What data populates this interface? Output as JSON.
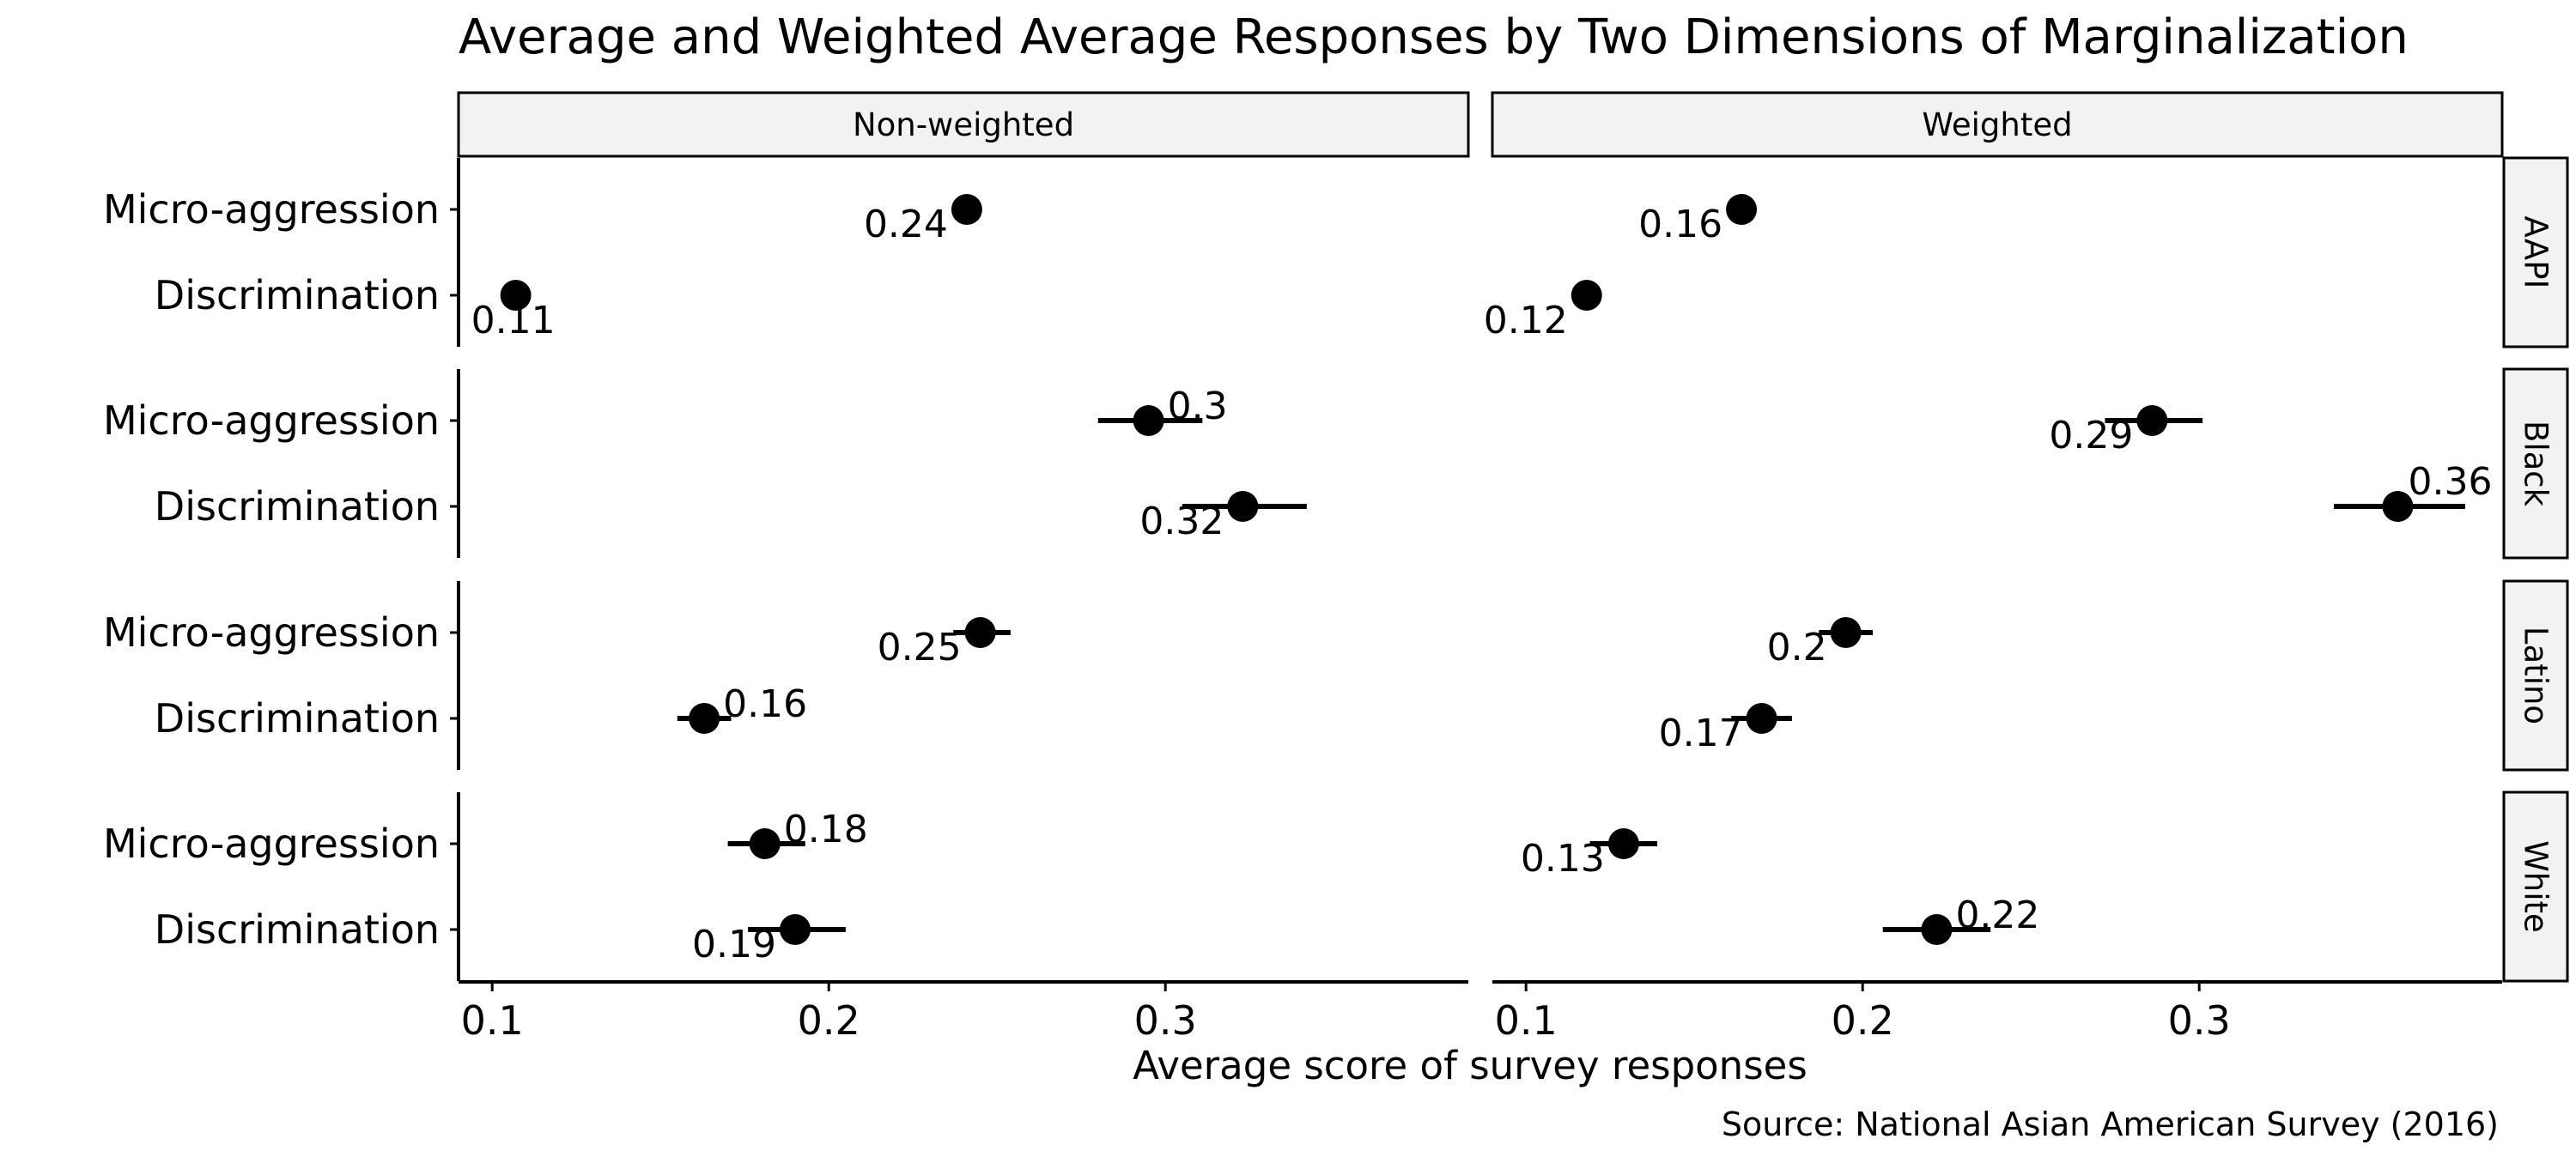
{
  "chart_data": {
    "type": "scatter",
    "subtype": "dot-and-whisker faceted plot",
    "title": "Average and Weighted Average Responses by Two Dimensions of Marginalization",
    "xlabel": "Average score of survey responses",
    "caption": "Source: National Asian American Survey (2016)",
    "xlim": [
      0.09,
      0.39
    ],
    "x_ticks": [
      0.1,
      0.2,
      0.3
    ],
    "x_tick_labels": [
      "0.1",
      "0.2",
      "0.3"
    ],
    "y_categories": [
      "Micro-aggression",
      "Discrimination"
    ],
    "column_facets": [
      "Non-weighted",
      "Weighted"
    ],
    "row_facets": [
      "AAPI",
      "Black",
      "Latino",
      "White"
    ],
    "grid": false,
    "panels": [
      {
        "column": "Non-weighted",
        "row": "AAPI",
        "points": [
          {
            "category": "Micro-aggression",
            "value": 0.241,
            "ci": [
              0.238,
              0.244
            ],
            "label": "0.24"
          },
          {
            "category": "Discrimination",
            "value": 0.107,
            "ci": [
              0.104,
              0.11
            ],
            "label": "0.11"
          }
        ]
      },
      {
        "column": "Non-weighted",
        "row": "Black",
        "points": [
          {
            "category": "Micro-aggression",
            "value": 0.295,
            "ci": [
              0.28,
              0.311
            ],
            "label": "0.3"
          },
          {
            "category": "Discrimination",
            "value": 0.323,
            "ci": [
              0.305,
              0.342
            ],
            "label": "0.32"
          }
        ]
      },
      {
        "column": "Non-weighted",
        "row": "Latino",
        "points": [
          {
            "category": "Micro-aggression",
            "value": 0.245,
            "ci": [
              0.237,
              0.254
            ],
            "label": "0.25"
          },
          {
            "category": "Discrimination",
            "value": 0.163,
            "ci": [
              0.155,
              0.171
            ],
            "label": "0.16"
          }
        ]
      },
      {
        "column": "Non-weighted",
        "row": "White",
        "points": [
          {
            "category": "Micro-aggression",
            "value": 0.181,
            "ci": [
              0.17,
              0.193
            ],
            "label": "0.18"
          },
          {
            "category": "Discrimination",
            "value": 0.19,
            "ci": [
              0.176,
              0.205
            ],
            "label": "0.19"
          }
        ]
      },
      {
        "column": "Weighted",
        "row": "AAPI",
        "points": [
          {
            "category": "Micro-aggression",
            "value": 0.164,
            "ci": [
              0.161,
              0.167
            ],
            "label": "0.16"
          },
          {
            "category": "Discrimination",
            "value": 0.118,
            "ci": [
              0.115,
              0.121
            ],
            "label": "0.12"
          }
        ]
      },
      {
        "column": "Weighted",
        "row": "Black",
        "points": [
          {
            "category": "Micro-aggression",
            "value": 0.286,
            "ci": [
              0.272,
              0.301
            ],
            "label": "0.29"
          },
          {
            "category": "Discrimination",
            "value": 0.359,
            "ci": [
              0.34,
              0.379
            ],
            "label": "0.36"
          }
        ]
      },
      {
        "column": "Weighted",
        "row": "Latino",
        "points": [
          {
            "category": "Micro-aggression",
            "value": 0.195,
            "ci": [
              0.187,
              0.203
            ],
            "label": "0.2"
          },
          {
            "category": "Discrimination",
            "value": 0.17,
            "ci": [
              0.161,
              0.179
            ],
            "label": "0.17"
          }
        ]
      },
      {
        "column": "Weighted",
        "row": "White",
        "points": [
          {
            "category": "Micro-aggression",
            "value": 0.129,
            "ci": [
              0.119,
              0.139
            ],
            "label": "0.13"
          },
          {
            "category": "Discrimination",
            "value": 0.222,
            "ci": [
              0.206,
              0.238
            ],
            "label": "0.22"
          }
        ]
      }
    ],
    "colors": {
      "point": "#000000",
      "strip_fill": "#f2f2f2",
      "axis": "#000000",
      "background": "#ffffff"
    }
  }
}
